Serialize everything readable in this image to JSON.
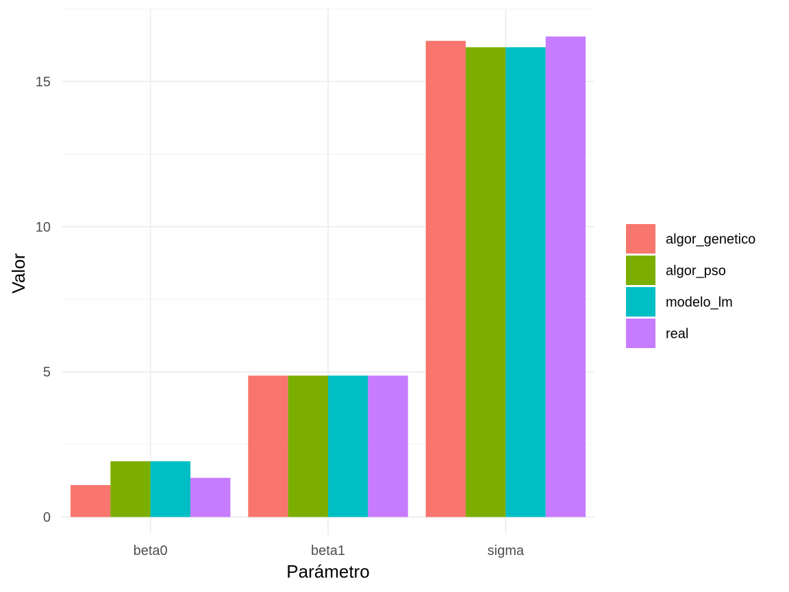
{
  "chart_data": {
    "type": "bar",
    "title": "",
    "xlabel": "Parámetro",
    "ylabel": "Valor",
    "categories": [
      "beta0",
      "beta1",
      "sigma"
    ],
    "series": [
      {
        "name": "algor_genetico",
        "color": "#F8766D",
        "values": [
          1.1,
          4.87,
          16.4
        ]
      },
      {
        "name": "algor_pso",
        "color": "#7CAE00",
        "values": [
          1.92,
          4.87,
          16.18
        ]
      },
      {
        "name": "modelo_lm",
        "color": "#00BFC4",
        "values": [
          1.92,
          4.87,
          16.18
        ]
      },
      {
        "name": "real",
        "color": "#C77CFF",
        "values": [
          1.35,
          4.87,
          16.55
        ]
      }
    ],
    "ylim": [
      -0.6,
      17.5
    ],
    "yticks": [
      0,
      5,
      10,
      15
    ],
    "ytick_labels": [
      "0",
      "5",
      "10",
      "15"
    ],
    "grid": true,
    "legend_position": "right"
  }
}
